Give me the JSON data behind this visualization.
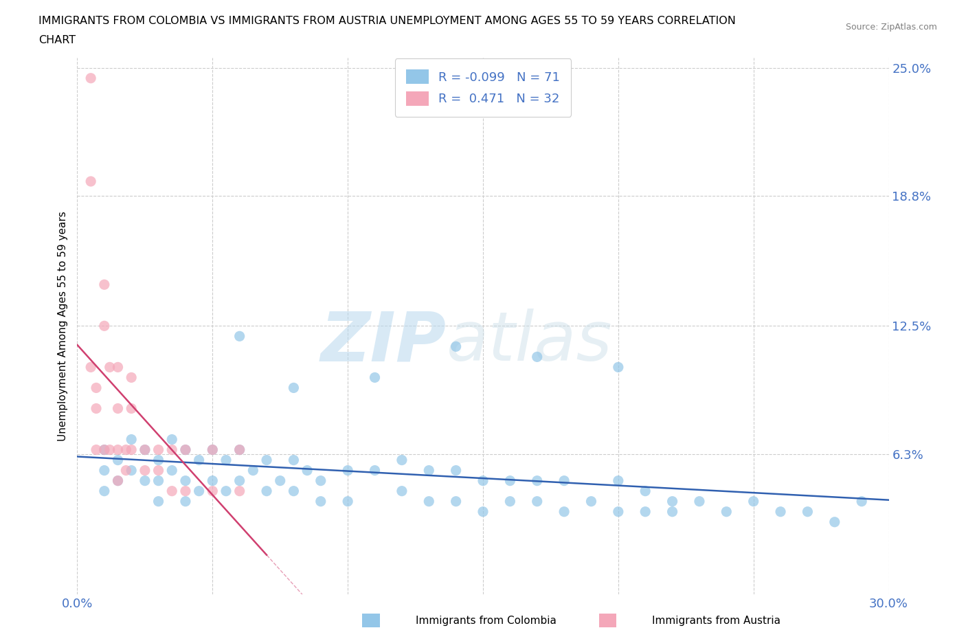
{
  "title_line1": "IMMIGRANTS FROM COLOMBIA VS IMMIGRANTS FROM AUSTRIA UNEMPLOYMENT AMONG AGES 55 TO 59 YEARS CORRELATION",
  "title_line2": "CHART",
  "source_text": "Source: ZipAtlas.com",
  "ylabel": "Unemployment Among Ages 55 to 59 years",
  "xlim": [
    0.0,
    0.3
  ],
  "ylim": [
    -0.005,
    0.255
  ],
  "xticks": [
    0.0,
    0.05,
    0.1,
    0.15,
    0.2,
    0.25,
    0.3
  ],
  "xticklabels": [
    "0.0%",
    "",
    "",
    "",
    "",
    "",
    "30.0%"
  ],
  "ytick_positions": [
    0.063,
    0.125,
    0.188,
    0.25
  ],
  "ytick_labels": [
    "6.3%",
    "12.5%",
    "18.8%",
    "25.0%"
  ],
  "colombia_color": "#93c6e8",
  "austria_color": "#f4a7b9",
  "colombia_line_color": "#3060b0",
  "austria_line_color": "#d04070",
  "austria_line_style": "solid",
  "colombia_R": -0.099,
  "colombia_N": 71,
  "austria_R": 0.471,
  "austria_N": 32,
  "legend_label_colombia": "Immigrants from Colombia",
  "legend_label_austria": "Immigrants from Austria",
  "watermark_zip": "ZIP",
  "watermark_atlas": "atlas",
  "background_color": "#ffffff",
  "grid_color": "#cccccc",
  "axis_label_color": "#4472c4",
  "colombia_scatter_x": [
    0.01,
    0.01,
    0.01,
    0.015,
    0.015,
    0.02,
    0.02,
    0.025,
    0.025,
    0.03,
    0.03,
    0.03,
    0.035,
    0.035,
    0.04,
    0.04,
    0.04,
    0.045,
    0.045,
    0.05,
    0.05,
    0.055,
    0.055,
    0.06,
    0.06,
    0.065,
    0.07,
    0.07,
    0.075,
    0.08,
    0.08,
    0.085,
    0.09,
    0.09,
    0.1,
    0.1,
    0.11,
    0.12,
    0.12,
    0.13,
    0.13,
    0.14,
    0.14,
    0.15,
    0.15,
    0.16,
    0.16,
    0.17,
    0.17,
    0.18,
    0.18,
    0.19,
    0.2,
    0.2,
    0.21,
    0.21,
    0.22,
    0.22,
    0.23,
    0.24,
    0.25,
    0.26,
    0.27,
    0.28,
    0.29,
    0.2,
    0.17,
    0.14,
    0.11,
    0.08,
    0.06
  ],
  "colombia_scatter_y": [
    0.065,
    0.055,
    0.045,
    0.06,
    0.05,
    0.07,
    0.055,
    0.065,
    0.05,
    0.06,
    0.05,
    0.04,
    0.07,
    0.055,
    0.065,
    0.05,
    0.04,
    0.06,
    0.045,
    0.065,
    0.05,
    0.06,
    0.045,
    0.065,
    0.05,
    0.055,
    0.06,
    0.045,
    0.05,
    0.06,
    0.045,
    0.055,
    0.05,
    0.04,
    0.055,
    0.04,
    0.055,
    0.06,
    0.045,
    0.055,
    0.04,
    0.055,
    0.04,
    0.05,
    0.035,
    0.05,
    0.04,
    0.05,
    0.04,
    0.05,
    0.035,
    0.04,
    0.05,
    0.035,
    0.045,
    0.035,
    0.04,
    0.035,
    0.04,
    0.035,
    0.04,
    0.035,
    0.035,
    0.03,
    0.04,
    0.105,
    0.11,
    0.115,
    0.1,
    0.095,
    0.12
  ],
  "austria_scatter_x": [
    0.005,
    0.005,
    0.005,
    0.007,
    0.007,
    0.01,
    0.01,
    0.01,
    0.012,
    0.012,
    0.015,
    0.015,
    0.015,
    0.018,
    0.018,
    0.02,
    0.02,
    0.02,
    0.025,
    0.025,
    0.03,
    0.03,
    0.035,
    0.035,
    0.04,
    0.04,
    0.05,
    0.05,
    0.06,
    0.06,
    0.007,
    0.015
  ],
  "austria_scatter_y": [
    0.245,
    0.195,
    0.105,
    0.095,
    0.085,
    0.145,
    0.125,
    0.065,
    0.105,
    0.065,
    0.105,
    0.085,
    0.065,
    0.065,
    0.055,
    0.1,
    0.085,
    0.065,
    0.065,
    0.055,
    0.065,
    0.055,
    0.065,
    0.045,
    0.065,
    0.045,
    0.065,
    0.045,
    0.065,
    0.045,
    0.065,
    0.05
  ]
}
